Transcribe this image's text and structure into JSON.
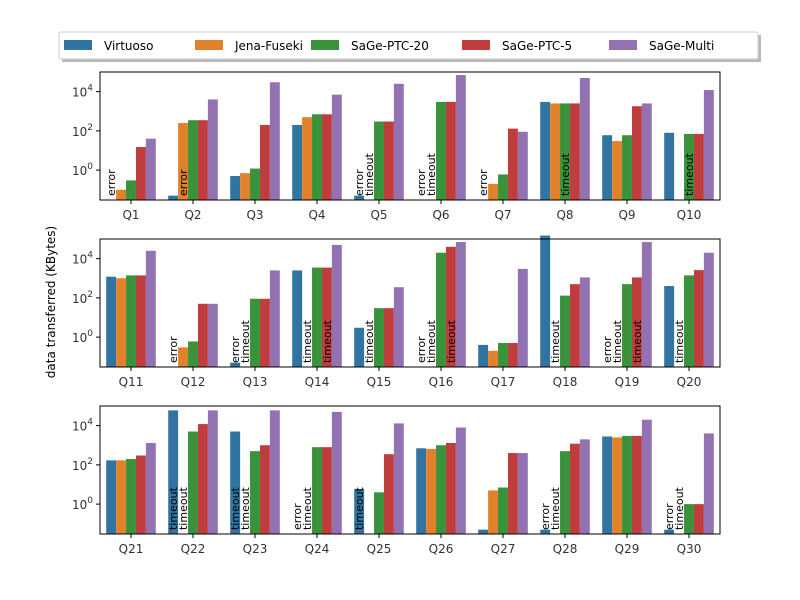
{
  "chart_data": {
    "type": "bar",
    "ylabel": "data transferred (KBytes)",
    "yscale": "log",
    "ylim": [
      0.03,
      100000
    ],
    "yticks": [
      1,
      100,
      10000
    ],
    "ytick_labels": [
      "10^0",
      "10^2",
      "10^4"
    ],
    "legend_position": "top",
    "series": [
      {
        "name": "Virtuoso",
        "color": "#3274a1"
      },
      {
        "name": "Jena-Fuseki",
        "color": "#e1812c"
      },
      {
        "name": "SaGe-PTC-20",
        "color": "#3a923a"
      },
      {
        "name": "SaGe-PTC-5",
        "color": "#c03d3e"
      },
      {
        "name": "SaGe-Multi",
        "color": "#9372b2"
      }
    ],
    "panels": [
      {
        "categories": [
          "Q1",
          "Q2",
          "Q3",
          "Q4",
          "Q5",
          "Q6",
          "Q7",
          "Q8",
          "Q9",
          "Q10"
        ],
        "values": [
          [
            null,
            0.05,
            0.5,
            200,
            0.05,
            null,
            null,
            3000,
            60,
            80
          ],
          [
            0.1,
            250,
            0.7,
            500,
            null,
            null,
            0.2,
            2500,
            30,
            null
          ],
          [
            0.3,
            350,
            1.2,
            700,
            300,
            3000,
            0.6,
            2500,
            60,
            70
          ],
          [
            15,
            350,
            200,
            700,
            300,
            3000,
            130,
            2500,
            1800,
            70
          ],
          [
            40,
            4000,
            30000,
            7000,
            25000,
            70000,
            90,
            50000,
            2500,
            12000
          ]
        ],
        "annotations": [
          [
            "error",
            null,
            null,
            null,
            "error",
            "error",
            "error",
            null,
            null,
            null
          ],
          [
            null,
            "error",
            null,
            null,
            null,
            null,
            null,
            null,
            null,
            null
          ],
          [
            null,
            null,
            null,
            null,
            null,
            null,
            null,
            null,
            null,
            null
          ],
          [
            null,
            null,
            null,
            null,
            null,
            null,
            null,
            null,
            null,
            null
          ],
          [
            null,
            null,
            null,
            null,
            null,
            null,
            null,
            null,
            null,
            null
          ]
        ],
        "annotations2": [
          [
            null,
            null,
            null,
            null,
            null,
            null,
            null,
            null,
            null,
            null
          ],
          [
            null,
            null,
            null,
            null,
            "timeout",
            "timeout",
            null,
            null,
            null,
            null
          ],
          [
            null,
            null,
            null,
            null,
            null,
            null,
            null,
            "timeout",
            null,
            "timeout"
          ],
          [
            null,
            null,
            null,
            null,
            null,
            null,
            null,
            null,
            null,
            null
          ],
          [
            null,
            null,
            null,
            null,
            null,
            null,
            null,
            null,
            null,
            null
          ]
        ]
      },
      {
        "categories": [
          "Q11",
          "Q12",
          "Q13",
          "Q14",
          "Q15",
          "Q16",
          "Q17",
          "Q18",
          "Q19",
          "Q20"
        ],
        "values": [
          [
            1200,
            null,
            0.05,
            2500,
            3,
            null,
            0.4,
            150000,
            null,
            400
          ],
          [
            1000,
            0.3,
            null,
            null,
            null,
            null,
            0.2,
            null,
            null,
            null
          ],
          [
            1400,
            0.6,
            90,
            3500,
            30,
            20000,
            0.5,
            130,
            500,
            1400
          ],
          [
            1400,
            50,
            90,
            3500,
            30,
            40000,
            0.5,
            500,
            1100,
            2600
          ],
          [
            25000,
            50,
            2500,
            50000,
            350,
            70000,
            3000,
            1100,
            70000,
            20000
          ]
        ],
        "annotations": [
          [
            null,
            "error",
            "error",
            null,
            null,
            "error",
            null,
            null,
            "error",
            null
          ],
          [
            null,
            null,
            "timeout",
            "timeout",
            "timeout",
            "timeout",
            null,
            "timeout",
            "timeout",
            "timeout"
          ],
          [
            null,
            null,
            null,
            null,
            null,
            null,
            null,
            null,
            null,
            null
          ],
          [
            null,
            null,
            null,
            null,
            null,
            null,
            null,
            null,
            null,
            null
          ],
          [
            null,
            null,
            null,
            null,
            null,
            null,
            null,
            null,
            null,
            null
          ]
        ],
        "annotations2": [
          [
            null,
            null,
            null,
            null,
            null,
            null,
            null,
            null,
            null,
            null
          ],
          [
            null,
            null,
            null,
            null,
            null,
            null,
            null,
            null,
            null,
            null
          ],
          [
            null,
            null,
            null,
            null,
            null,
            null,
            null,
            null,
            null,
            null
          ],
          [
            null,
            null,
            null,
            "timeout",
            null,
            "timeout",
            null,
            null,
            "timeout",
            null
          ],
          [
            null,
            null,
            null,
            null,
            null,
            null,
            null,
            null,
            null,
            null
          ]
        ]
      },
      {
        "categories": [
          "Q21",
          "Q22",
          "Q23",
          "Q24",
          "Q25",
          "Q26",
          "Q27",
          "Q28",
          "Q29",
          "Q30"
        ],
        "values": [
          [
            170,
            60000,
            5000,
            null,
            6,
            700,
            0.05,
            0.05,
            2800,
            0.05
          ],
          [
            170,
            null,
            null,
            null,
            null,
            650,
            5,
            null,
            2500,
            null
          ],
          [
            200,
            5000,
            500,
            800,
            4,
            1000,
            7,
            500,
            3000,
            1
          ],
          [
            300,
            12000,
            1000,
            800,
            350,
            1300,
            400,
            1200,
            3000,
            1
          ],
          [
            1300,
            60000,
            60000,
            50000,
            13000,
            8000,
            400,
            2000,
            20000,
            4000
          ]
        ],
        "annotations": [
          [
            null,
            "timeout",
            "timeout",
            "error",
            "timeout",
            null,
            null,
            "error",
            null,
            "error"
          ],
          [
            null,
            null,
            null,
            "timeout",
            null,
            null,
            null,
            "timeout",
            null,
            "timeout"
          ],
          [
            null,
            null,
            null,
            null,
            null,
            null,
            null,
            null,
            null,
            null
          ],
          [
            null,
            null,
            null,
            null,
            null,
            null,
            null,
            null,
            null,
            null
          ],
          [
            null,
            null,
            null,
            null,
            null,
            null,
            null,
            null,
            null,
            null
          ]
        ],
        "annotations2": [
          [
            null,
            null,
            null,
            null,
            null,
            null,
            null,
            null,
            null,
            null
          ],
          [
            null,
            "timeout",
            "timeout",
            null,
            null,
            null,
            null,
            null,
            null,
            null
          ],
          [
            null,
            null,
            null,
            null,
            null,
            null,
            null,
            null,
            null,
            null
          ],
          [
            null,
            null,
            null,
            null,
            null,
            null,
            null,
            null,
            null,
            null
          ],
          [
            null,
            null,
            null,
            null,
            null,
            null,
            null,
            null,
            null,
            null
          ]
        ]
      }
    ]
  }
}
